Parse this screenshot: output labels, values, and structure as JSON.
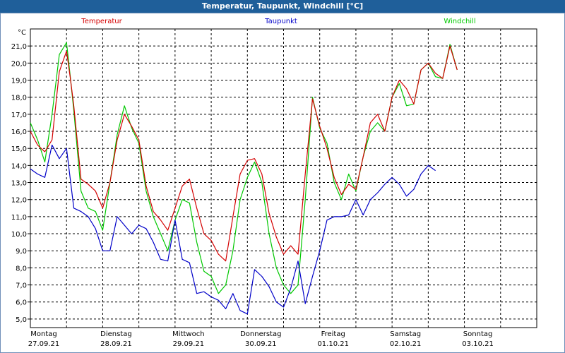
{
  "window": {
    "title": "Temperatur, Taupunkt, Windchill [°C]"
  },
  "chart_data": {
    "type": "line",
    "title": "Temperatur, Taupunkt, Windchill [°C]",
    "ylabel": "°C",
    "ylim": [
      4.5,
      22.0
    ],
    "xlim": [
      0,
      7
    ],
    "grid": true,
    "y_ticks": [
      "5,0",
      "6,0",
      "7,0",
      "8,0",
      "9,0",
      "10,0",
      "11,0",
      "12,0",
      "13,0",
      "14,0",
      "15,0",
      "16,0",
      "17,0",
      "18,0",
      "19,0",
      "20,0",
      "21,0"
    ],
    "x_tick_positions": [
      0,
      1,
      2,
      3,
      4,
      5,
      6
    ],
    "x_tick_days": [
      "Montag",
      "Dienstag",
      "Mittwoch",
      "Donnerstag",
      "Freitag",
      "Samstag",
      "Sonntag"
    ],
    "x_tick_dates": [
      "27.09.21",
      "28.09.21",
      "29.09.21",
      "30.09.21",
      "01.10.21",
      "02.10.21",
      "03.10.21"
    ],
    "series": [
      {
        "name": "Temperatur",
        "color": "#d40000",
        "x": [
          0,
          0.1,
          0.2,
          0.3,
          0.4,
          0.5,
          0.55,
          0.6,
          0.7,
          0.8,
          0.9,
          1.0,
          1.1,
          1.2,
          1.3,
          1.4,
          1.5,
          1.6,
          1.7,
          1.8,
          1.9,
          2.0,
          2.1,
          2.2,
          2.3,
          2.4,
          2.5,
          2.6,
          2.7,
          2.8,
          2.9,
          3.0,
          3.1,
          3.2,
          3.3,
          3.4,
          3.5,
          3.6,
          3.7,
          3.8,
          3.9,
          4.0,
          4.1,
          4.2,
          4.3,
          4.4,
          4.5,
          4.6,
          4.7,
          4.8,
          4.9,
          5.0,
          5.1,
          5.2,
          5.3,
          5.4,
          5.5,
          5.6,
          5.7,
          5.8,
          5.9,
          6.0,
          6.1,
          6.2,
          6.3,
          6.4,
          6.5,
          6.6,
          6.65
        ],
        "values": [
          16.0,
          15.2,
          14.8,
          15.5,
          19.5,
          20.7,
          19.2,
          17.5,
          13.2,
          12.9,
          12.5,
          11.5,
          13.0,
          15.5,
          17.0,
          16.3,
          15.5,
          12.8,
          11.3,
          10.8,
          10.2,
          11.5,
          12.8,
          13.2,
          11.5,
          10.0,
          9.6,
          8.8,
          8.4,
          11.0,
          13.5,
          14.3,
          14.4,
          13.5,
          11.2,
          9.8,
          8.8,
          9.3,
          8.8,
          13.5,
          17.9,
          16.3,
          15.0,
          13.3,
          12.3,
          12.9,
          12.6,
          14.5,
          16.5,
          17.0,
          16.0,
          18.0,
          19.0,
          18.5,
          17.6,
          19.6,
          20.0,
          19.4,
          19.1,
          21.0,
          19.6,
          null,
          null,
          null,
          null,
          null,
          null,
          null,
          null
        ]
      },
      {
        "name": "Taupunkt",
        "color": "#0000c8",
        "x": [
          0,
          0.1,
          0.2,
          0.3,
          0.4,
          0.5,
          0.6,
          0.7,
          0.8,
          0.9,
          1.0,
          1.1,
          1.2,
          1.3,
          1.4,
          1.5,
          1.6,
          1.7,
          1.8,
          1.9,
          2.0,
          2.1,
          2.2,
          2.3,
          2.4,
          2.5,
          2.6,
          2.7,
          2.8,
          2.9,
          3.0,
          3.1,
          3.2,
          3.3,
          3.4,
          3.5,
          3.6,
          3.7,
          3.8,
          3.9,
          4.0,
          4.1,
          4.2,
          4.3,
          4.4,
          4.5,
          4.6,
          4.7,
          4.8,
          4.9,
          5.0,
          5.1,
          5.2,
          5.3,
          5.4,
          5.5,
          5.6,
          5.7,
          5.8,
          5.9,
          6.0,
          6.1,
          6.2,
          6.3,
          6.4,
          6.5,
          6.6,
          6.65
        ],
        "values": [
          13.8,
          13.5,
          13.3,
          15.2,
          14.4,
          15.0,
          11.5,
          11.3,
          11.0,
          10.3,
          9.0,
          9.0,
          11.0,
          10.5,
          10.0,
          10.5,
          10.3,
          9.5,
          8.5,
          8.4,
          10.8,
          8.5,
          8.3,
          6.5,
          6.6,
          6.3,
          6.1,
          5.6,
          6.5,
          5.5,
          5.3,
          7.9,
          7.5,
          6.9,
          6.0,
          5.7,
          6.8,
          8.4,
          5.9,
          7.5,
          9.0,
          10.8,
          11.0,
          11.0,
          11.1,
          12.0,
          11.1,
          12.0,
          12.4,
          12.9,
          13.3,
          12.9,
          12.2,
          12.6,
          13.5,
          14.0,
          13.7,
          null,
          null,
          null,
          null,
          null,
          null,
          null,
          null,
          null,
          null,
          null
        ]
      },
      {
        "name": "Windchill",
        "color": "#00c800",
        "x": [
          0,
          0.1,
          0.2,
          0.3,
          0.4,
          0.5,
          0.55,
          0.6,
          0.7,
          0.8,
          0.9,
          1.0,
          1.1,
          1.2,
          1.3,
          1.4,
          1.5,
          1.6,
          1.7,
          1.8,
          1.9,
          2.0,
          2.1,
          2.2,
          2.3,
          2.4,
          2.5,
          2.6,
          2.7,
          2.8,
          2.9,
          3.0,
          3.1,
          3.2,
          3.3,
          3.4,
          3.5,
          3.6,
          3.7,
          3.8,
          3.9,
          4.0,
          4.1,
          4.2,
          4.3,
          4.4,
          4.5,
          4.6,
          4.7,
          4.8,
          4.9,
          5.0,
          5.1,
          5.2,
          5.3,
          5.4,
          5.5,
          5.6,
          5.7,
          5.8,
          5.9,
          6.0,
          6.1,
          6.2,
          6.3,
          6.4,
          6.5,
          6.6,
          6.65
        ],
        "values": [
          16.5,
          15.5,
          14.2,
          17.0,
          20.5,
          21.2,
          19.3,
          17.2,
          12.5,
          11.5,
          11.3,
          10.2,
          13.0,
          15.8,
          17.5,
          16.2,
          15.3,
          12.5,
          11.0,
          10.0,
          9.0,
          10.8,
          12.0,
          11.8,
          9.5,
          7.8,
          7.5,
          6.5,
          7.0,
          9.0,
          12.0,
          13.3,
          14.2,
          13.0,
          10.0,
          8.0,
          7.0,
          6.5,
          7.0,
          12.0,
          18.0,
          16.2,
          15.3,
          13.0,
          12.0,
          13.5,
          12.5,
          14.5,
          16.0,
          16.5,
          16.0,
          18.0,
          18.8,
          17.5,
          17.6,
          19.6,
          20.0,
          19.2,
          19.1,
          21.1,
          19.6,
          null,
          null,
          null,
          null,
          null,
          null,
          null,
          null
        ]
      }
    ]
  }
}
